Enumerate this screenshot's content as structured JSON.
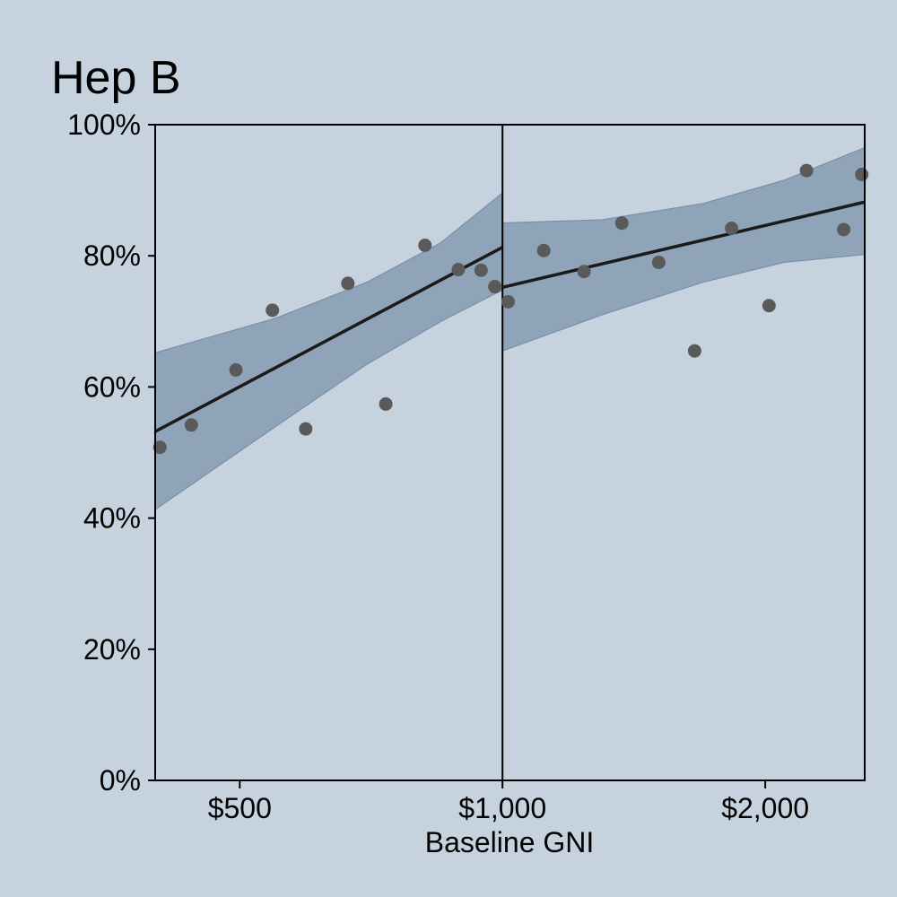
{
  "chart_data": {
    "type": "scatter",
    "title": "Hep B",
    "xlabel": "Baseline GNI",
    "ylabel": "",
    "x_scale": "log",
    "xlim": [
      400,
      2600
    ],
    "ylim": [
      0,
      100
    ],
    "x_ticks": [
      {
        "value": 500,
        "label": "$500"
      },
      {
        "value": 1000,
        "label": "$1,000"
      },
      {
        "value": 2000,
        "label": "$2,000"
      }
    ],
    "y_ticks": [
      {
        "value": 0,
        "label": "0%"
      },
      {
        "value": 20,
        "label": "20%"
      },
      {
        "value": 40,
        "label": "40%"
      },
      {
        "value": 60,
        "label": "60%"
      },
      {
        "value": 80,
        "label": "80%"
      },
      {
        "value": 100,
        "label": "100%"
      }
    ],
    "threshold_x": 1000,
    "points": [
      {
        "x": 405,
        "y": 50.8
      },
      {
        "x": 440,
        "y": 54.2
      },
      {
        "x": 495,
        "y": 62.6
      },
      {
        "x": 545,
        "y": 71.7
      },
      {
        "x": 595,
        "y": 53.6
      },
      {
        "x": 665,
        "y": 75.8
      },
      {
        "x": 735,
        "y": 57.4
      },
      {
        "x": 815,
        "y": 81.6
      },
      {
        "x": 890,
        "y": 77.9
      },
      {
        "x": 945,
        "y": 77.8
      },
      {
        "x": 980,
        "y": 75.3
      },
      {
        "x": 1015,
        "y": 73.0
      },
      {
        "x": 1115,
        "y": 80.8
      },
      {
        "x": 1240,
        "y": 77.6
      },
      {
        "x": 1370,
        "y": 85.0
      },
      {
        "x": 1510,
        "y": 79.0
      },
      {
        "x": 1660,
        "y": 65.5
      },
      {
        "x": 1830,
        "y": 84.2
      },
      {
        "x": 2020,
        "y": 72.4
      },
      {
        "x": 2230,
        "y": 93.0
      },
      {
        "x": 2460,
        "y": 84.0
      },
      {
        "x": 2580,
        "y": 92.4
      }
    ],
    "fit_left": {
      "x": [
        400,
        1000
      ],
      "y": [
        53.2,
        81.3
      ],
      "band_x": [
        400,
        550,
        700,
        850,
        1000
      ],
      "band_upper": [
        65.2,
        70.5,
        76.0,
        82.0,
        89.6
      ],
      "band_lower": [
        41.3,
        54.0,
        63.5,
        70.0,
        74.8
      ]
    },
    "fit_right": {
      "x": [
        1000,
        2600
      ],
      "y": [
        75.2,
        88.2
      ],
      "band_x": [
        1000,
        1300,
        1700,
        2100,
        2600
      ],
      "band_upper": [
        85.0,
        85.5,
        88.0,
        91.5,
        96.5
      ],
      "band_lower": [
        65.5,
        71.0,
        76.0,
        79.0,
        80.2
      ]
    },
    "colors": {
      "background": "#c6d3df",
      "band": "#8a9fb5",
      "band_edge": "#7a90a8",
      "fit_line": "#1a1a1a",
      "points": "#5a5a5a"
    }
  }
}
